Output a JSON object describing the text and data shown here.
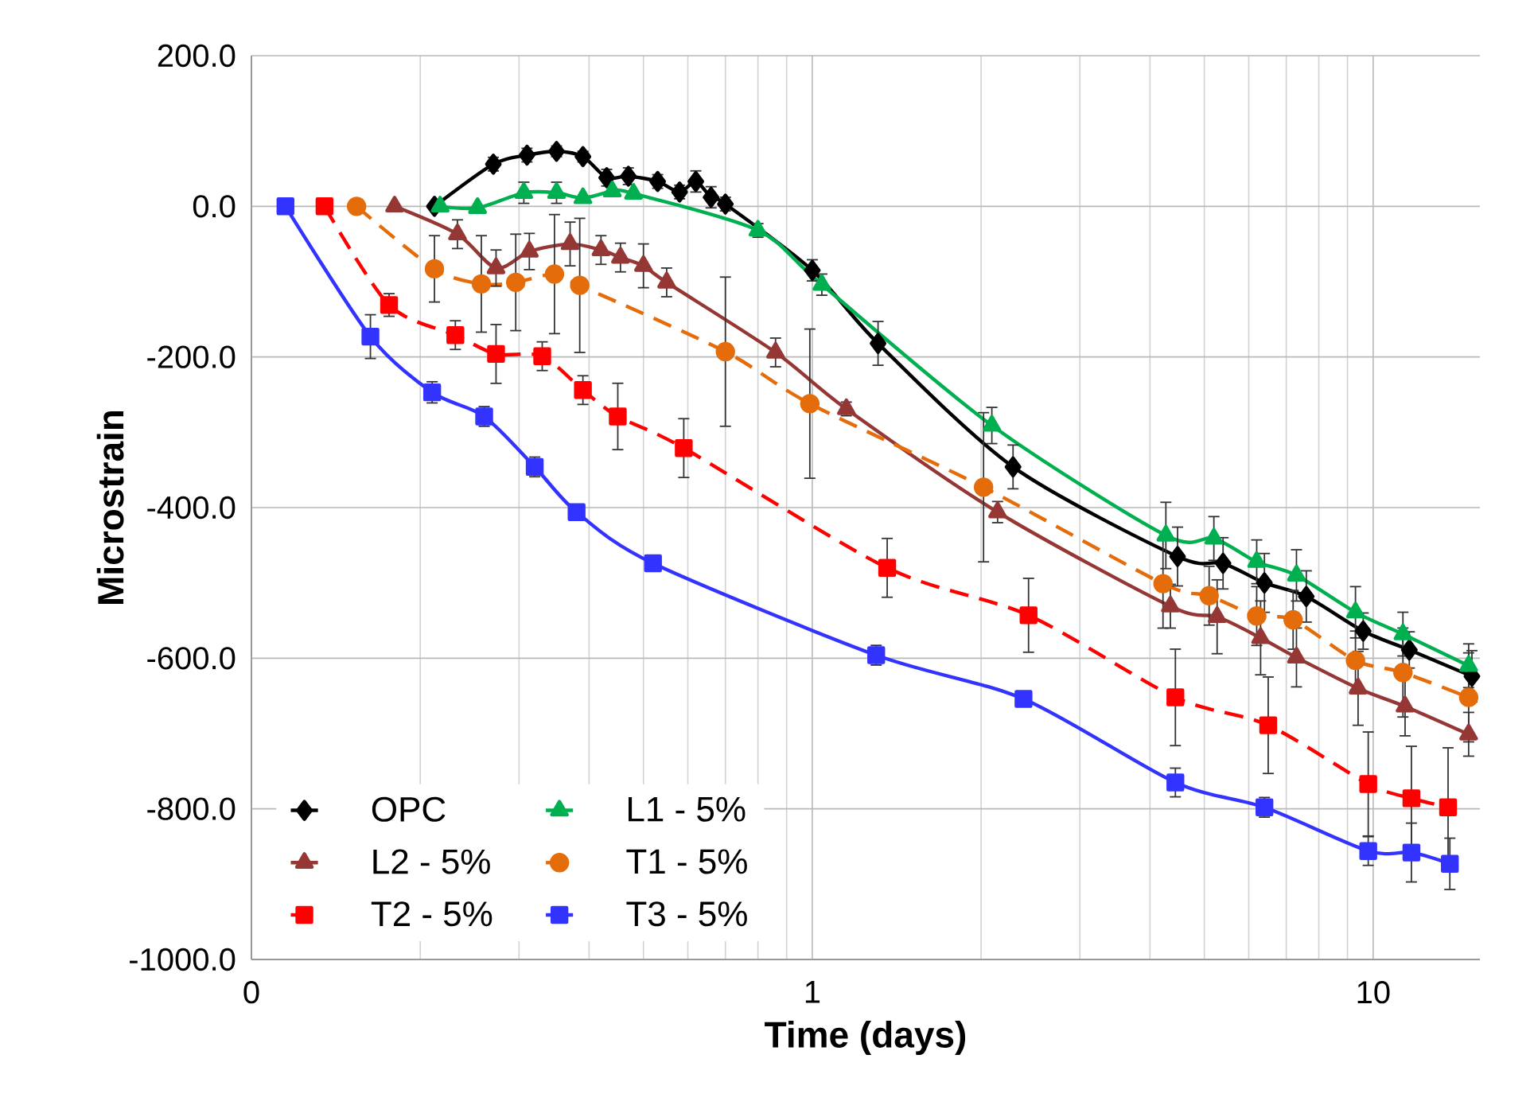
{
  "chart_data": {
    "type": "line",
    "xlabel": "Time (days)",
    "ylabel": "Microstrain",
    "log": "x",
    "grid": true,
    "legend": "bottom left",
    "xlim": [
      0.1,
      15.5
    ],
    "xticks": [
      {
        "value": 0.1,
        "label": "0"
      },
      1,
      10
    ],
    "ylim": [
      -1000,
      200
    ],
    "yticks": [
      {
        "value": -1000,
        "label": "-1000.0"
      },
      {
        "value": -800,
        "label": "-800.0"
      },
      {
        "value": -600,
        "label": "-600.0"
      },
      {
        "value": -400,
        "label": "-400.0"
      },
      {
        "value": -200,
        "label": "-200.0"
      },
      {
        "value": 0,
        "label": "0.0"
      },
      {
        "value": 200,
        "label": "200.0"
      }
    ],
    "series": [
      {
        "name": "OPC",
        "color": "#000000",
        "marker": "diamond",
        "line_style": "solid",
        "x": [
          0.212,
          0.27,
          0.31,
          0.35,
          0.39,
          0.43,
          0.47,
          0.53,
          0.58,
          0.62,
          0.66,
          0.7,
          1.0,
          1.31,
          2.28,
          4.48,
          5.4,
          6.4,
          7.6,
          9.6,
          11.6,
          15.0
        ],
        "values": [
          0,
          56,
          68,
          73,
          66,
          38,
          40,
          33,
          19,
          33,
          12,
          3,
          -85,
          -182,
          -346,
          -465,
          -474,
          -500,
          -518,
          -564,
          -589,
          -624
        ],
        "errors": [
          null,
          10,
          10,
          8,
          8,
          12,
          12,
          10,
          10,
          15,
          15,
          10,
          15,
          30,
          30,
          40,
          35,
          40,
          35,
          25,
          25,
          35
        ]
      },
      {
        "name": "L1 - 5%",
        "color": "#00b050",
        "marker": "triangle",
        "line_style": "solid",
        "x": [
          0.217,
          0.253,
          0.306,
          0.35,
          0.39,
          0.44,
          0.48,
          0.8,
          1.04,
          2.09,
          4.27,
          5.2,
          6.2,
          7.3,
          9.3,
          11.3,
          14.8
        ],
        "values": [
          0,
          -2,
          18,
          18,
          11,
          20,
          17,
          -32,
          -104,
          -291,
          -437,
          -441,
          -472,
          -490,
          -539,
          -568,
          -610
        ],
        "errors": [
          null,
          null,
          15,
          15,
          null,
          null,
          null,
          10,
          15,
          25,
          45,
          30,
          30,
          35,
          35,
          30,
          30
        ]
      },
      {
        "name": "L2 - 5%",
        "color": "#953735",
        "marker": "triangle",
        "line_style": "solid",
        "x": [
          0.18,
          0.233,
          0.273,
          0.313,
          0.37,
          0.42,
          0.455,
          0.5,
          0.55,
          0.86,
          1.15,
          2.14,
          4.35,
          5.27,
          6.3,
          7.3,
          9.4,
          11.4,
          14.8
        ],
        "values": [
          0,
          -37,
          -82,
          -60,
          -50,
          -58,
          -68,
          -79,
          -101,
          -194,
          -269,
          -406,
          -531,
          -545,
          -573,
          -599,
          -640,
          -664,
          -701
        ],
        "errors": [
          null,
          20,
          25,
          25,
          30,
          20,
          20,
          30,
          20,
          20,
          10,
          15,
          30,
          50,
          50,
          40,
          50,
          40,
          30
        ]
      },
      {
        "name": "T1 - 5%",
        "color": "#e46c0a",
        "marker": "circle",
        "line_style": "dashed",
        "x": [
          0.154,
          0.212,
          0.257,
          0.296,
          0.347,
          0.385,
          0.7,
          0.99,
          2.02,
          4.22,
          5.1,
          6.2,
          7.2,
          9.3,
          11.3,
          14.8
        ],
        "values": [
          0,
          -83,
          -103,
          -101,
          -90,
          -105,
          -193,
          -262,
          -373,
          -501,
          -517,
          -544,
          -549,
          -603,
          -619,
          -652
        ],
        "errors": [
          null,
          45,
          65,
          65,
          80,
          90,
          100,
          100,
          100,
          60,
          40,
          40,
          40,
          40,
          60,
          60
        ]
      },
      {
        "name": "T2 - 5%",
        "color": "#ff0000",
        "marker": "square",
        "line_style": "dashed",
        "x": [
          0.135,
          0.176,
          0.231,
          0.273,
          0.33,
          0.39,
          0.45,
          0.59,
          1.36,
          2.43,
          4.44,
          6.5,
          9.8,
          11.7,
          13.6
        ],
        "values": [
          0,
          -131,
          -171,
          -196,
          -199,
          -244,
          -279,
          -321,
          -480,
          -543,
          -652,
          -689,
          -767,
          -786,
          -798
        ],
        "errors": [
          null,
          16,
          20,
          40,
          20,
          20,
          45,
          40,
          40,
          50,
          65,
          65,
          70,
          70,
          80
        ]
      },
      {
        "name": "T3 - 5%",
        "color": "#3333ff",
        "marker": "square",
        "line_style": "solid",
        "x": [
          0.115,
          0.163,
          0.21,
          0.26,
          0.32,
          0.38,
          0.52,
          1.3,
          2.38,
          4.44,
          6.4,
          9.8,
          11.7,
          13.7
        ],
        "values": [
          0,
          -173,
          -247,
          -279,
          -346,
          -406,
          -474,
          -596,
          -654,
          -765,
          -798,
          -856,
          -858,
          -873
        ],
        "errors": [
          null,
          30,
          15,
          14,
          14,
          null,
          null,
          14,
          null,
          20,
          14,
          20,
          40,
          35
        ]
      }
    ]
  }
}
